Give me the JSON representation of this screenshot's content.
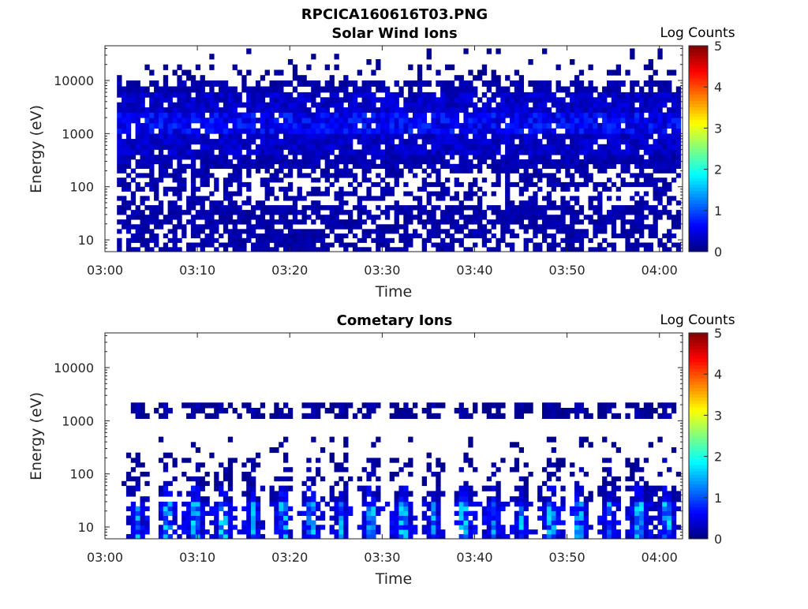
{
  "figure": {
    "title": "RPCICA160616T03.PNG"
  },
  "chart_data": [
    {
      "type": "heatmap",
      "title": "Solar Wind Ions",
      "xlabel": "Time",
      "ylabel": "Energy (eV)",
      "x_tick_labels": [
        "03:00",
        "03:10",
        "03:20",
        "03:30",
        "03:40",
        "03:50",
        "04:00"
      ],
      "x_range_minutes": [
        0,
        62.5
      ],
      "y_tick_labels": [
        "10",
        "100",
        "1000",
        "10000"
      ],
      "y_tick_values": [
        10,
        100,
        1000,
        10000
      ],
      "y_range": [
        6,
        45000
      ],
      "y_scale": "log",
      "colorbar": {
        "label": "Log Counts",
        "ticks": [
          "0",
          "1",
          "2",
          "3",
          "4",
          "5"
        ],
        "range": [
          0,
          5
        ]
      },
      "data_extent_minutes": [
        1.3,
        62.3
      ],
      "bands": [
        {
          "e_min": 6,
          "e_max": 16,
          "log_counts": 0.2,
          "fill": 0.62
        },
        {
          "e_min": 16,
          "e_max": 45,
          "log_counts": 0.2,
          "fill": 0.78
        },
        {
          "e_min": 45,
          "e_max": 100,
          "log_counts": 0.2,
          "fill": 0.45
        },
        {
          "e_min": 100,
          "e_max": 220,
          "log_counts": 0.2,
          "fill": 0.55
        },
        {
          "e_min": 220,
          "e_max": 400,
          "log_counts": 0.25,
          "fill": 0.88
        },
        {
          "e_min": 400,
          "e_max": 1000,
          "log_counts": 0.35,
          "fill": 0.94
        },
        {
          "e_min": 1000,
          "e_max": 2500,
          "log_counts": 0.6,
          "fill": 0.95
        },
        {
          "e_min": 2500,
          "e_max": 6000,
          "log_counts": 0.35,
          "fill": 0.9
        },
        {
          "e_min": 6000,
          "e_max": 10000,
          "log_counts": 0.2,
          "fill": 0.7
        },
        {
          "e_min": 10000,
          "e_max": 20000,
          "log_counts": 0.1,
          "fill": 0.22
        },
        {
          "e_min": 20000,
          "e_max": 40000,
          "log_counts": 0.1,
          "fill": 0.04
        }
      ]
    },
    {
      "type": "heatmap",
      "title": "Cometary Ions",
      "xlabel": "Time",
      "ylabel": "Energy (eV)",
      "x_tick_labels": [
        "03:00",
        "03:10",
        "03:20",
        "03:30",
        "03:40",
        "03:50",
        "04:00"
      ],
      "x_range_minutes": [
        0,
        62.5
      ],
      "y_tick_labels": [
        "10",
        "100",
        "1000",
        "10000"
      ],
      "y_tick_values": [
        10,
        100,
        1000,
        10000
      ],
      "y_range": [
        6,
        45000
      ],
      "y_scale": "log",
      "colorbar": {
        "label": "Log Counts",
        "ticks": [
          "0",
          "1",
          "2",
          "3",
          "4",
          "5"
        ],
        "range": [
          0,
          5
        ]
      },
      "data_extent_minutes": [
        1.3,
        62.3
      ],
      "pulse_times_minutes": [
        3.3,
        6.4,
        9.6,
        12.6,
        15.8,
        18.9,
        22.1,
        25.3,
        28.5,
        32.0,
        35.3,
        38.7,
        41.8,
        44.8,
        48.0,
        51.2,
        54.3,
        57.5,
        60.5
      ],
      "bands": [
        {
          "e_min": 6,
          "e_max": 30,
          "log_counts": 1.2,
          "fill": 0.96
        },
        {
          "e_min": 30,
          "e_max": 60,
          "log_counts": 0.5,
          "fill": 0.7
        },
        {
          "e_min": 60,
          "e_max": 200,
          "log_counts": 0.2,
          "fill": 0.35
        },
        {
          "e_min": 200,
          "e_max": 500,
          "log_counts": 0.1,
          "fill": 0.15
        },
        {
          "e_min": 1100,
          "e_max": 2200,
          "log_counts": 0.2,
          "fill": 0.8
        }
      ]
    }
  ]
}
